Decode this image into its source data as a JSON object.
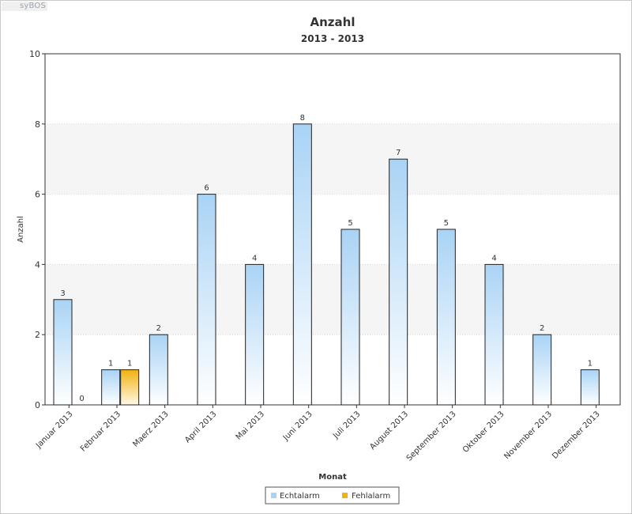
{
  "app": {
    "brand": "syBOS"
  },
  "colors": {
    "echtalarm": "#b3d9f7",
    "fehlalarm": "#f2b10e"
  },
  "chart_data": {
    "type": "bar",
    "title": "Anzahl",
    "subtitle": "2013 - 2013",
    "xlabel": "Monat",
    "ylabel": "Anzahl",
    "ylim": [
      0,
      10
    ],
    "yticks": [
      0,
      2,
      4,
      6,
      8,
      10
    ],
    "grid": "horizontal-bands",
    "legend_position": "bottom-center",
    "categories": [
      "Januar 2013",
      "Februar 2013",
      "Maerz 2013",
      "April 2013",
      "Mai 2013",
      "Juni 2013",
      "Juli 2013",
      "August 2013",
      "September 2013",
      "Oktober 2013",
      "November 2013",
      "Dezember 2013"
    ],
    "series": [
      {
        "name": "Echtalarm",
        "values": [
          3,
          1,
          2,
          6,
          4,
          8,
          5,
          7,
          5,
          4,
          2,
          1
        ]
      },
      {
        "name": "Fehlalarm",
        "values": [
          0,
          1,
          null,
          null,
          null,
          null,
          null,
          null,
          null,
          null,
          null,
          null
        ]
      }
    ]
  }
}
